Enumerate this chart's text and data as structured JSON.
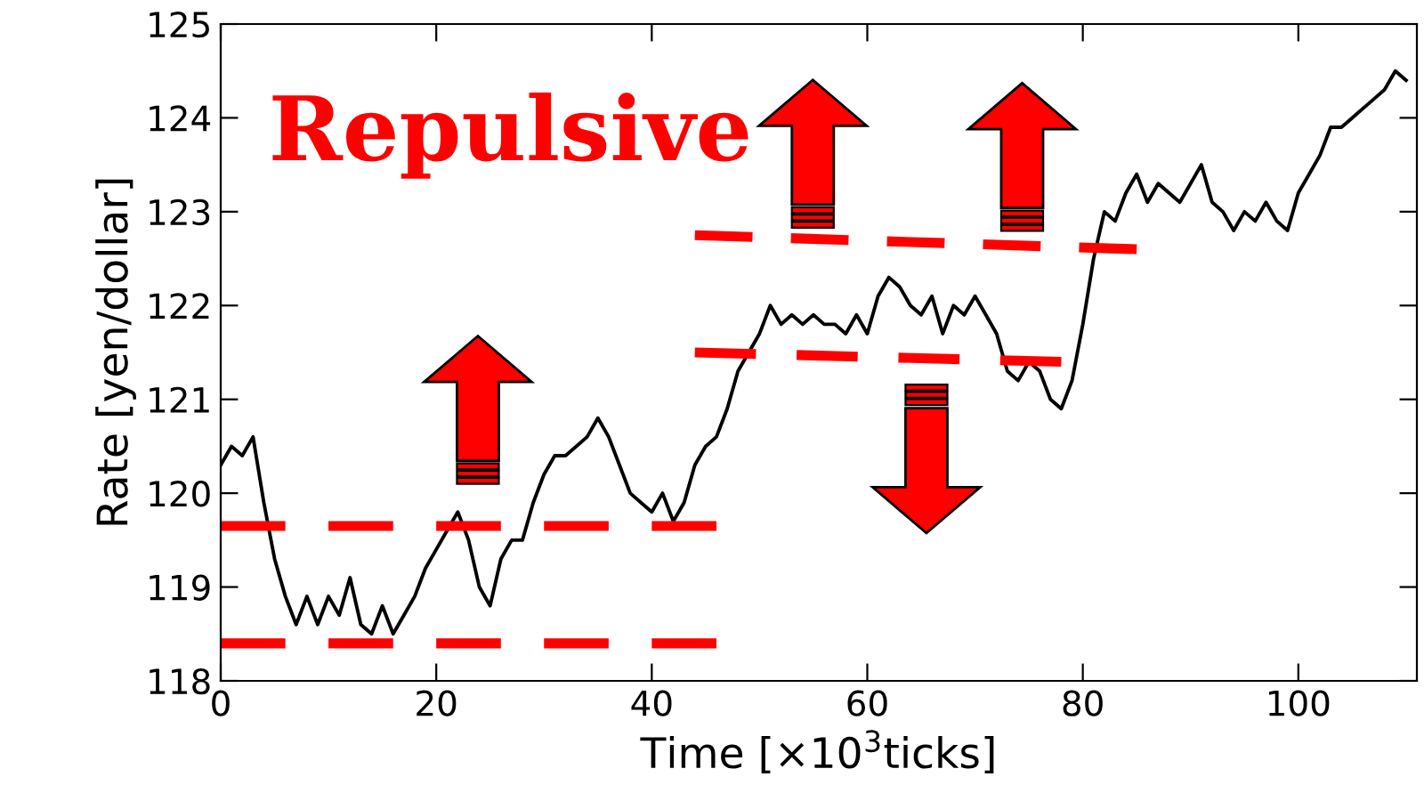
{
  "chart_data": {
    "type": "line",
    "xlabel": "Time [×10$^{3}$ticks]",
    "ylabel": "Rate [yen/dollar]",
    "annotations": [
      "Repulsive"
    ],
    "xlim": [
      0,
      111
    ],
    "ylim": [
      118,
      125
    ],
    "xticks": [
      0,
      20,
      40,
      60,
      80,
      100
    ],
    "yticks": [
      118,
      119,
      120,
      121,
      122,
      123,
      124,
      125
    ],
    "grid": false,
    "legend": false,
    "series": [
      {
        "color": "#000000",
        "line_style": "solid",
        "x": [
          0,
          1,
          2,
          3,
          4,
          5,
          6,
          7,
          8,
          9,
          10,
          11,
          12,
          13,
          14,
          15,
          16,
          17,
          18,
          19,
          20,
          21,
          22,
          23,
          24,
          25,
          26,
          27,
          28,
          29,
          30,
          31,
          32,
          33,
          34,
          35,
          36,
          37,
          38,
          39,
          40,
          41,
          42,
          43,
          44,
          45,
          46,
          47,
          48,
          49,
          50,
          51,
          52,
          53,
          54,
          55,
          56,
          57,
          58,
          59,
          60,
          61,
          62,
          63,
          64,
          65,
          66,
          67,
          68,
          69,
          70,
          71,
          72,
          73,
          74,
          75,
          76,
          77,
          78,
          79,
          80,
          81,
          82,
          83,
          84,
          85,
          86,
          87,
          88,
          89,
          90,
          91,
          92,
          93,
          94,
          95,
          96,
          97,
          98,
          99,
          100,
          101,
          102,
          103,
          104,
          105,
          106,
          107,
          108,
          109,
          110
        ],
        "values": [
          120.3,
          120.5,
          120.4,
          120.6,
          119.9,
          119.3,
          118.9,
          118.6,
          118.9,
          118.6,
          118.9,
          118.7,
          119.1,
          118.6,
          118.5,
          118.8,
          118.5,
          118.7,
          118.9,
          119.2,
          119.4,
          119.6,
          119.8,
          119.5,
          119.0,
          118.8,
          119.3,
          119.5,
          119.5,
          119.9,
          120.2,
          120.4,
          120.4,
          120.5,
          120.6,
          120.8,
          120.6,
          120.3,
          120.0,
          119.9,
          119.8,
          120.0,
          119.7,
          119.9,
          120.3,
          120.5,
          120.6,
          120.9,
          121.3,
          121.5,
          121.7,
          122.0,
          121.8,
          121.9,
          121.8,
          121.9,
          121.8,
          121.8,
          121.7,
          121.9,
          121.7,
          122.1,
          122.3,
          122.2,
          122.0,
          121.9,
          122.1,
          121.7,
          122.0,
          121.9,
          122.1,
          121.9,
          121.7,
          121.3,
          121.2,
          121.4,
          121.3,
          121.0,
          120.9,
          121.2,
          121.8,
          122.5,
          123.0,
          122.9,
          123.2,
          123.4,
          123.1,
          123.3,
          123.2,
          123.1,
          123.3,
          123.5,
          123.1,
          123.0,
          122.8,
          123.0,
          122.9,
          123.1,
          122.9,
          122.8,
          123.2,
          123.4,
          123.6,
          123.9,
          123.9,
          124.0,
          124.1,
          124.2,
          124.3,
          124.5,
          124.4
        ]
      },
      {
        "color": "#ff0000",
        "line_style": "dashed",
        "x": [
          0,
          46
        ],
        "values": [
          119.65,
          119.65
        ]
      },
      {
        "color": "#ff0000",
        "line_style": "dashed",
        "x": [
          0,
          46
        ],
        "values": [
          118.4,
          118.4
        ]
      },
      {
        "color": "#ff0000",
        "line_style": "dashed",
        "x": [
          44,
          85
        ],
        "values": [
          122.75,
          122.6
        ]
      },
      {
        "color": "#ff0000",
        "line_style": "dashed",
        "x": [
          44,
          78
        ],
        "values": [
          121.5,
          121.4
        ]
      }
    ]
  }
}
